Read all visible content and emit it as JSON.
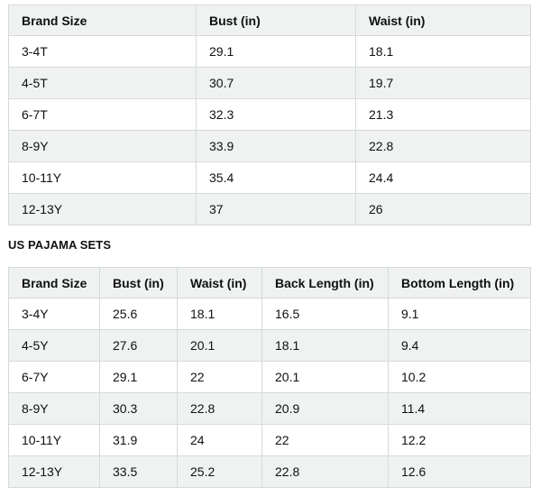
{
  "table1": {
    "headers": [
      "Brand Size",
      "Bust (in)",
      "Waist (in)"
    ],
    "rows": [
      [
        "3-4T",
        "29.1",
        "18.1"
      ],
      [
        "4-5T",
        "30.7",
        "19.7"
      ],
      [
        "6-7T",
        "32.3",
        "21.3"
      ],
      [
        "8-9Y",
        "33.9",
        "22.8"
      ],
      [
        "10-11Y",
        "35.4",
        "24.4"
      ],
      [
        "12-13Y",
        "37",
        "26"
      ]
    ]
  },
  "section_title": "US PAJAMA SETS",
  "table2": {
    "headers": [
      "Brand Size",
      "Bust (in)",
      "Waist (in)",
      "Back Length (in)",
      "Bottom Length (in)"
    ],
    "rows": [
      [
        "3-4Y",
        "25.6",
        "18.1",
        "16.5",
        "9.1"
      ],
      [
        "4-5Y",
        "27.6",
        "20.1",
        "18.1",
        "9.4"
      ],
      [
        "6-7Y",
        "29.1",
        "22",
        "20.1",
        "10.2"
      ],
      [
        "8-9Y",
        "30.3",
        "22.8",
        "20.9",
        "11.4"
      ],
      [
        "10-11Y",
        "31.9",
        "24",
        "22",
        "12.2"
      ],
      [
        "12-13Y",
        "33.5",
        "25.2",
        "22.8",
        "12.6"
      ]
    ]
  }
}
